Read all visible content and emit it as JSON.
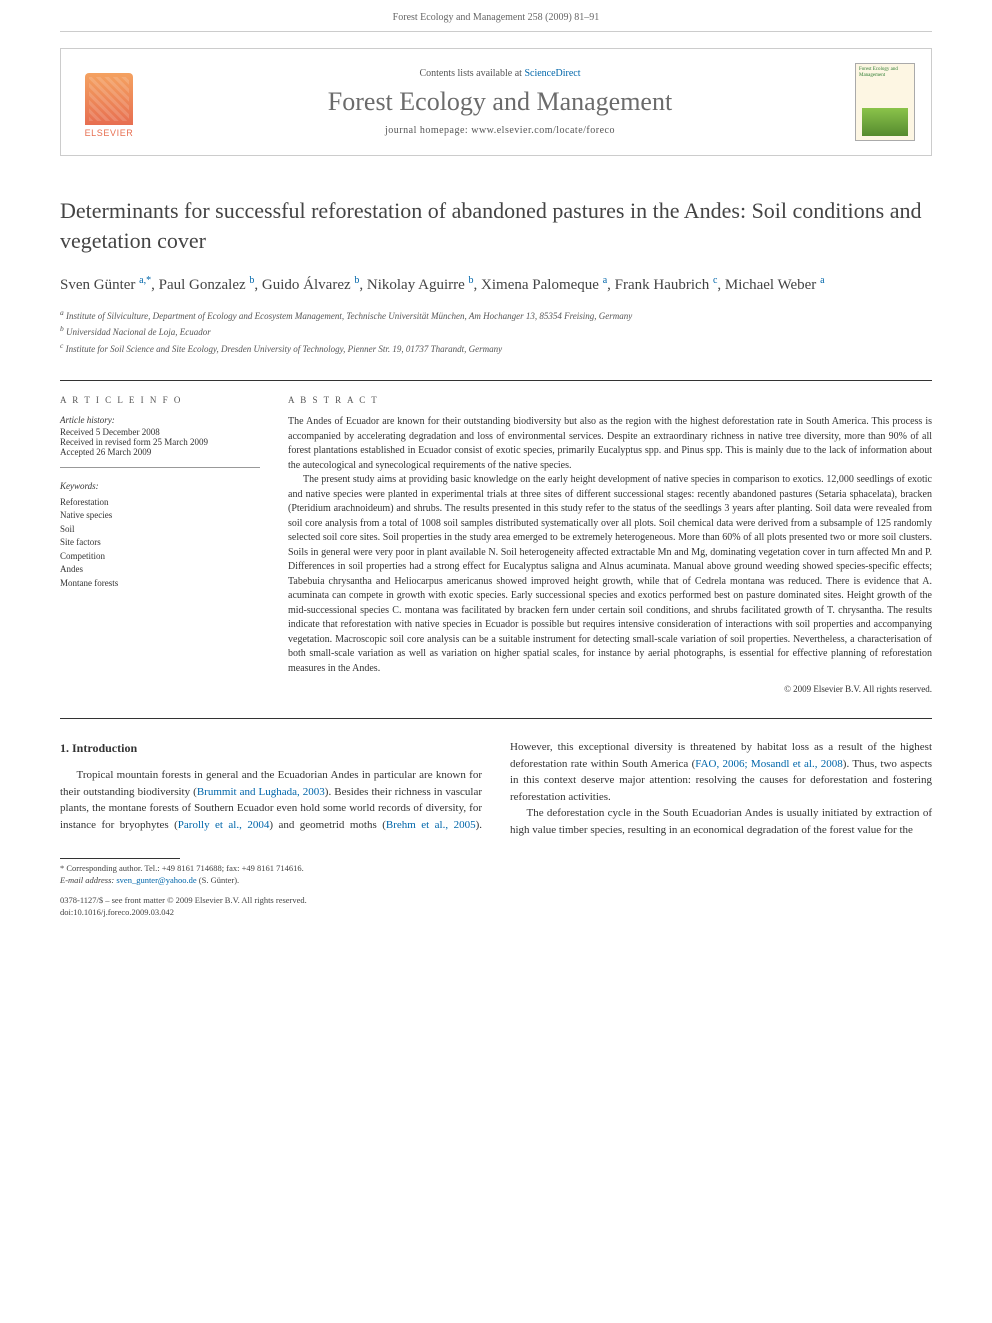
{
  "header_citation": "Forest Ecology and Management 258 (2009) 81–91",
  "banner": {
    "elsevier": "ELSEVIER",
    "contents_prefix": "Contents lists available at ",
    "contents_link": "ScienceDirect",
    "journal": "Forest Ecology and Management",
    "homepage_prefix": "journal homepage: ",
    "homepage_url": "www.elsevier.com/locate/foreco",
    "thumb_title": "Forest Ecology and Management"
  },
  "article": {
    "title": "Determinants for successful reforestation of abandoned pastures in the Andes: Soil conditions and vegetation cover",
    "authors_html": "Sven Günter <sup>a,*</sup>, Paul Gonzalez <sup>b</sup>, Guido Álvarez <sup>b</sup>, Nikolay Aguirre <sup>b</sup>, Ximena Palomeque <sup>a</sup>, Frank Haubrich <sup>c</sup>, Michael Weber <sup>a</sup>",
    "affiliations": {
      "a": "Institute of Silviculture, Department of Ecology and Ecosystem Management, Technische Universität München, Am Hochanger 13, 85354 Freising, Germany",
      "b": "Universidad Nacional de Loja, Ecuador",
      "c": "Institute for Soil Science and Site Ecology, Dresden University of Technology, Pienner Str. 19, 01737 Tharandt, Germany"
    }
  },
  "article_info": {
    "heading": "A R T I C L E   I N F O",
    "history_label": "Article history:",
    "received": "Received 5 December 2008",
    "revised": "Received in revised form 25 March 2009",
    "accepted": "Accepted 26 March 2009",
    "keywords_label": "Keywords:",
    "keywords": [
      "Reforestation",
      "Native species",
      "Soil",
      "Site factors",
      "Competition",
      "Andes",
      "Montane forests"
    ]
  },
  "abstract": {
    "heading": "A B S T R A C T",
    "p1": "The Andes of Ecuador are known for their outstanding biodiversity but also as the region with the highest deforestation rate in South America. This process is accompanied by accelerating degradation and loss of environmental services. Despite an extraordinary richness in native tree diversity, more than 90% of all forest plantations established in Ecuador consist of exotic species, primarily Eucalyptus spp. and Pinus spp. This is mainly due to the lack of information about the autecological and synecological requirements of the native species.",
    "p2": "The present study aims at providing basic knowledge on the early height development of native species in comparison to exotics. 12,000 seedlings of exotic and native species were planted in experimental trials at three sites of different successional stages: recently abandoned pastures (Setaria sphacelata), bracken (Pteridium arachnoideum) and shrubs. The results presented in this study refer to the status of the seedlings 3 years after planting. Soil data were revealed from soil core analysis from a total of 1008 soil samples distributed systematically over all plots. Soil chemical data were derived from a subsample of 125 randomly selected soil core sites. Soil properties in the study area emerged to be extremely heterogeneous. More than 60% of all plots presented two or more soil clusters. Soils in general were very poor in plant available N. Soil heterogeneity affected extractable Mn and Mg, dominating vegetation cover in turn affected Mn and P. Differences in soil properties had a strong effect for Eucalyptus saligna and Alnus acuminata. Manual above ground weeding showed species-specific effects; Tabebuia chrysantha and Heliocarpus americanus showed improved height growth, while that of Cedrela montana was reduced. There is evidence that A. acuminata can compete in growth with exotic species. Early successional species and exotics performed best on pasture dominated sites. Height growth of the mid-successional species C. montana was facilitated by bracken fern under certain soil conditions, and shrubs facilitated growth of T. chrysantha. The results indicate that reforestation with native species in Ecuador is possible but requires intensive consideration of interactions with soil properties and accompanying vegetation. Macroscopic soil core analysis can be a suitable instrument for detecting small-scale variation of soil properties. Nevertheless, a characterisation of both small-scale variation as well as variation on higher spatial scales, for instance by aerial photographs, is essential for effective planning of reforestation measures in the Andes.",
    "copyright": "© 2009 Elsevier B.V. All rights reserved."
  },
  "body": {
    "section_heading": "1. Introduction",
    "col_text": "Tropical mountain forests in general and the Ecuadorian Andes in particular are known for their outstanding biodiversity (Brummit and Lughada, 2003). Besides their richness in vascular plants, the montane forests of Southern Ecuador even hold some world records of diversity, for instance for bryophytes (Parolly et al., 2004) and geometrid moths (Brehm et al., 2005). However, this exceptional diversity is threatened by habitat loss as a result of the highest deforestation rate within South America (FAO, 2006; Mosandl et al., 2008). Thus, two aspects in this context deserve major attention: resolving the causes for deforestation and fostering reforestation activities.",
    "col_text2": "The deforestation cycle in the South Ecuadorian Andes is usually initiated by extraction of high value timber species, resulting in an economical degradation of the forest value for the"
  },
  "footnotes": {
    "corresponding": "* Corresponding author. Tel.: +49 8161 714688; fax: +49 8161 714616.",
    "email_label": "E-mail address:",
    "email": "sven_gunter@yahoo.de",
    "email_suffix": "(S. Günter).",
    "issn_line": "0378-1127/$ – see front matter © 2009 Elsevier B.V. All rights reserved.",
    "doi": "doi:10.1016/j.foreco.2009.03.042"
  },
  "colors": {
    "link": "#0066aa",
    "text": "#333333",
    "muted": "#666666",
    "elsevier_orange": "#e76f51"
  }
}
